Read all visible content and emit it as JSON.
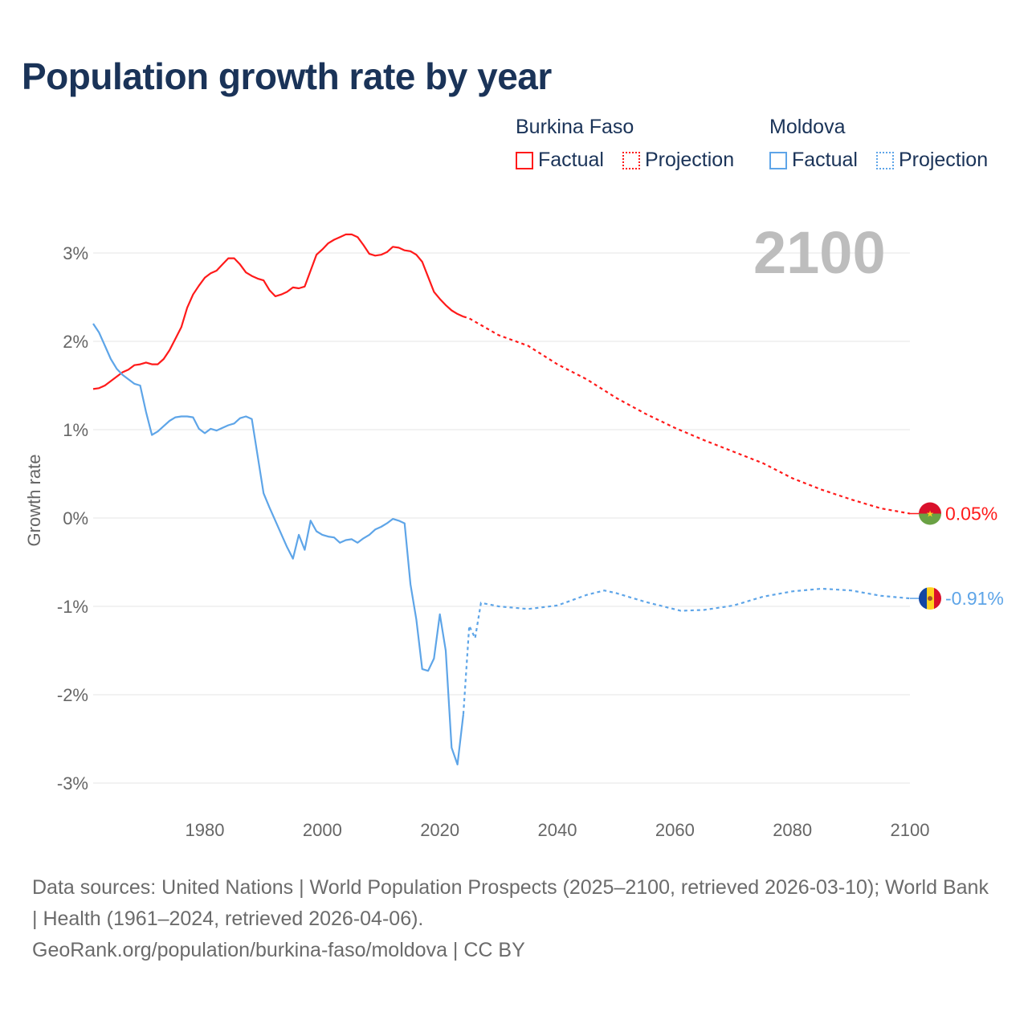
{
  "title": "Population growth rate by year",
  "legend": {
    "groups": [
      {
        "country": "Burkina Faso",
        "factual": "Factual",
        "projection": "Projection",
        "color": "#ff1a1a"
      },
      {
        "country": "Moldova",
        "factual": "Factual",
        "projection": "Projection",
        "color": "#5ea5e8"
      }
    ]
  },
  "year_display": "2100",
  "footer": {
    "sources": "Data sources: United Nations | World Population Prospects (2025–2100, retrieved 2026-03-10); World Bank | Health (1961–2024, retrieved 2026-04-06).",
    "link": "GeoRank.org/population/burkina-faso/moldova | CC BY"
  },
  "chart_data": {
    "type": "line",
    "title": "Population growth rate by year",
    "xlabel": "",
    "ylabel": "Growth rate",
    "xlim": [
      1961,
      2100
    ],
    "ylim": [
      -3.3,
      3.4
    ],
    "x_ticks": [
      1980,
      2000,
      2020,
      2040,
      2060,
      2080,
      2100
    ],
    "y_ticks": [
      3,
      2,
      1,
      0,
      -1,
      -2,
      -3
    ],
    "y_tick_labels": [
      "3%",
      "2%",
      "1%",
      "0%",
      "-1%",
      "-2%",
      "-3%"
    ],
    "grid": true,
    "legend_position": "top-right",
    "series": [
      {
        "name": "Burkina Faso",
        "color": "#ff1a1a",
        "end_label": "0.05%",
        "factual_start_year": 1961,
        "factual": [
          1.46,
          1.47,
          1.5,
          1.55,
          1.6,
          1.65,
          1.68,
          1.73,
          1.74,
          1.76,
          1.74,
          1.74,
          1.8,
          1.9,
          2.03,
          2.16,
          2.38,
          2.53,
          2.63,
          2.72,
          2.77,
          2.8,
          2.87,
          2.94,
          2.94,
          2.87,
          2.78,
          2.74,
          2.71,
          2.69,
          2.58,
          2.51,
          2.53,
          2.56,
          2.61,
          2.6,
          2.62,
          2.8,
          2.98,
          3.04,
          3.11,
          3.15,
          3.18,
          3.21,
          3.21,
          3.18,
          3.09,
          2.99,
          2.97,
          2.98,
          3.01,
          3.07,
          3.06,
          3.03,
          3.02,
          2.98,
          2.9,
          2.73,
          2.56,
          2.48,
          2.41,
          2.35,
          2.31,
          2.28
        ],
        "projection": [
          [
            2024,
            2.28
          ],
          [
            2025,
            2.26
          ],
          [
            2030,
            2.07
          ],
          [
            2035,
            1.95
          ],
          [
            2040,
            1.74
          ],
          [
            2045,
            1.57
          ],
          [
            2050,
            1.36
          ],
          [
            2055,
            1.18
          ],
          [
            2060,
            1.02
          ],
          [
            2065,
            0.88
          ],
          [
            2070,
            0.75
          ],
          [
            2075,
            0.62
          ],
          [
            2080,
            0.45
          ],
          [
            2085,
            0.32
          ],
          [
            2090,
            0.21
          ],
          [
            2095,
            0.11
          ],
          [
            2100,
            0.05
          ]
        ]
      },
      {
        "name": "Moldova",
        "color": "#5ea5e8",
        "end_label": "-0.91%",
        "factual_start_year": 1961,
        "factual": [
          2.2,
          2.1,
          1.95,
          1.8,
          1.69,
          1.62,
          1.57,
          1.52,
          1.5,
          1.2,
          0.94,
          0.98,
          1.04,
          1.1,
          1.14,
          1.15,
          1.15,
          1.14,
          1.01,
          0.96,
          1.01,
          0.99,
          1.02,
          1.05,
          1.07,
          1.13,
          1.15,
          1.12,
          0.7,
          0.28,
          0.12,
          -0.03,
          -0.18,
          -0.33,
          -0.46,
          -0.19,
          -0.36,
          -0.03,
          -0.15,
          -0.19,
          -0.21,
          -0.22,
          -0.28,
          -0.25,
          -0.24,
          -0.28,
          -0.23,
          -0.19,
          -0.13,
          -0.1,
          -0.06,
          -0.01,
          -0.03,
          -0.06,
          -0.75,
          -1.15,
          -1.71,
          -1.73,
          -1.59,
          -1.09,
          -1.5,
          -2.6,
          -2.79,
          -2.22
        ],
        "projection": [
          [
            2024,
            -2.22
          ],
          [
            2025,
            -1.22
          ],
          [
            2026,
            -1.36
          ],
          [
            2027,
            -0.96
          ],
          [
            2030,
            -1.0
          ],
          [
            2035,
            -1.03
          ],
          [
            2040,
            -0.99
          ],
          [
            2045,
            -0.87
          ],
          [
            2048,
            -0.82
          ],
          [
            2050,
            -0.85
          ],
          [
            2055,
            -0.95
          ],
          [
            2061,
            -1.05
          ],
          [
            2065,
            -1.04
          ],
          [
            2070,
            -0.99
          ],
          [
            2075,
            -0.89
          ],
          [
            2080,
            -0.83
          ],
          [
            2085,
            -0.8
          ],
          [
            2090,
            -0.82
          ],
          [
            2095,
            -0.88
          ],
          [
            2100,
            -0.91
          ]
        ]
      }
    ]
  }
}
